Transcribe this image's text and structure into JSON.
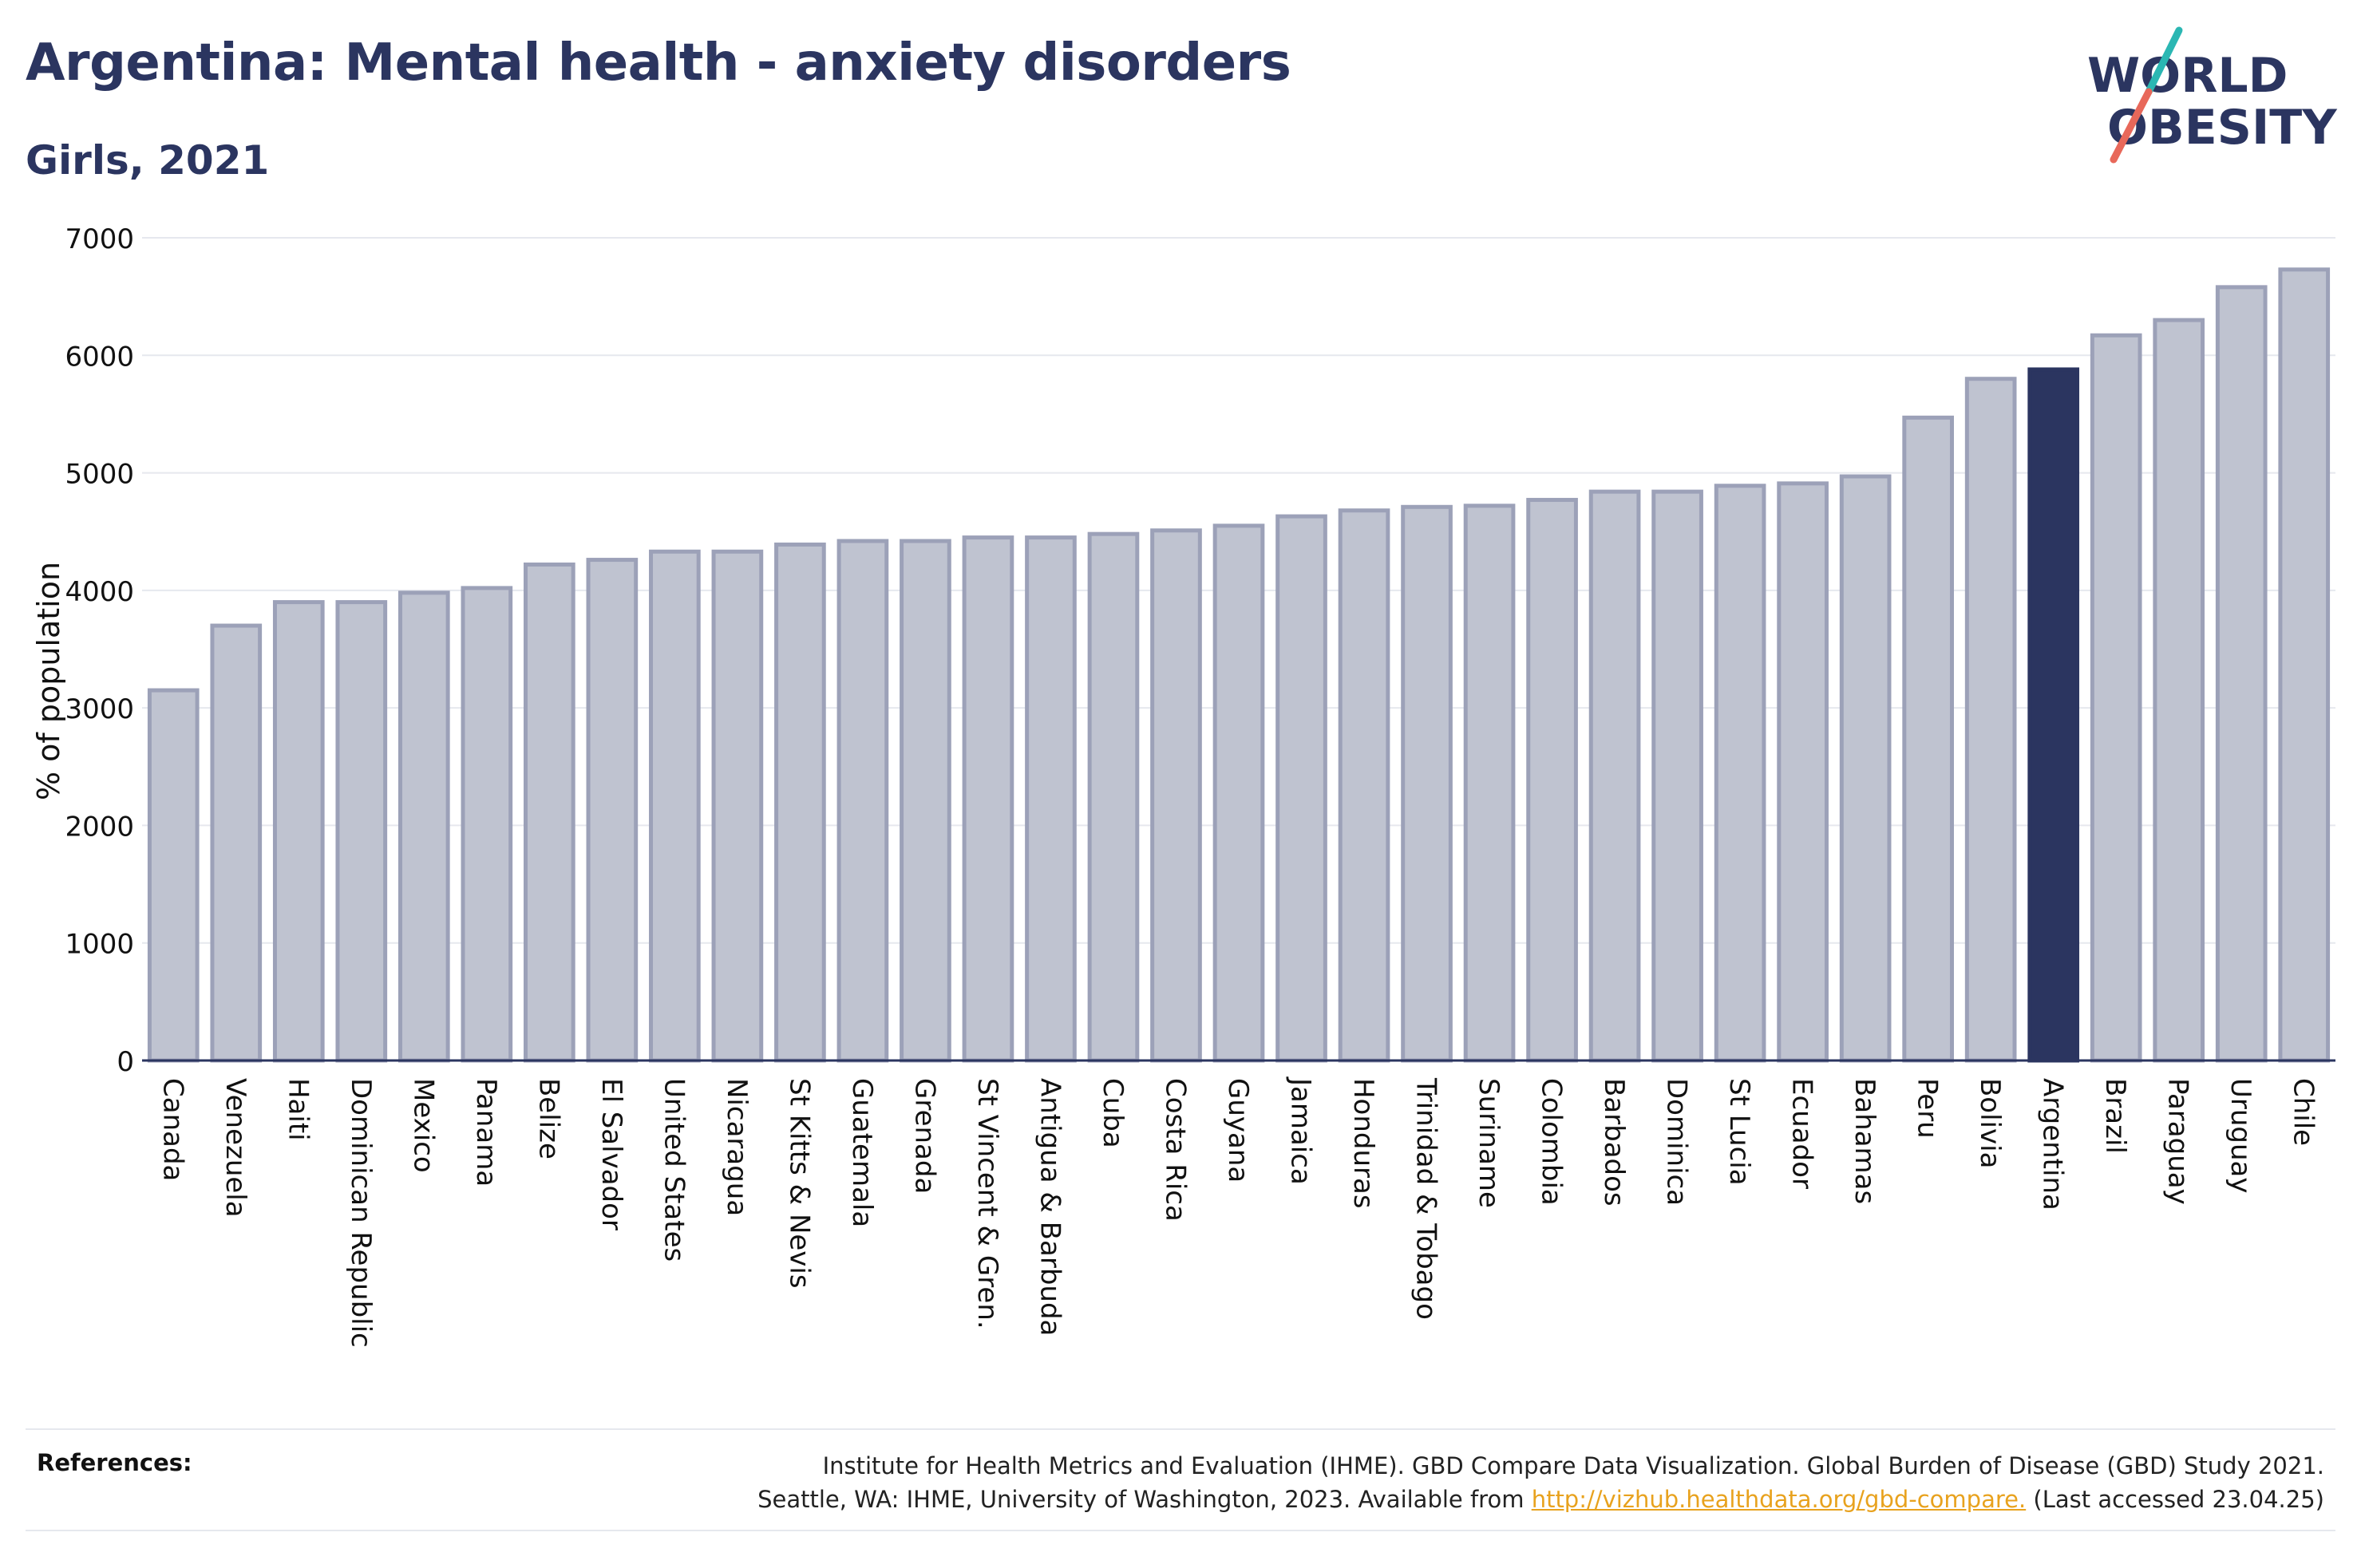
{
  "header": {
    "title": "Argentina: Mental health - anxiety disorders",
    "subtitle": "Girls, 2021"
  },
  "logo": {
    "line1": "WORLD",
    "line2": "OBESITY",
    "colors": {
      "text": "#2b3560",
      "teal": "#2bb7b3",
      "coral": "#e8685a"
    }
  },
  "references": {
    "label": "References:",
    "line1": "Institute for Health Metrics and Evaluation (IHME). GBD Compare Data Visualization. Global Burden of Disease (GBD) Study 2021.",
    "line2_prefix": "Seattle, WA: IHME, University of Washington, 2023. Available from ",
    "link": "http://vizhub.healthdata.org/gbd-compare.",
    "line2_suffix": " (Last accessed 23.04.25)"
  },
  "colors": {
    "bar": "#bfc3d0",
    "bar_stroke": "#9ca1b8",
    "highlight": "#2b3560",
    "grid": "#e6e8ee",
    "axis": "#2b3560"
  },
  "chart_data": {
    "type": "bar",
    "ylabel": "% of population",
    "xlabel": "",
    "ylim": [
      0,
      7000
    ],
    "yticks": [
      0,
      1000,
      2000,
      3000,
      4000,
      5000,
      6000,
      7000
    ],
    "grid": true,
    "highlight": "Argentina",
    "categories": [
      "Canada",
      "Venezuela",
      "Haiti",
      "Dominican Republic",
      "Mexico",
      "Panama",
      "Belize",
      "El Salvador",
      "United States",
      "Nicaragua",
      "St Kitts & Nevis",
      "Guatemala",
      "Grenada",
      "St Vincent & Gren.",
      "Antigua & Barbuda",
      "Cuba",
      "Costa Rica",
      "Guyana",
      "Jamaica",
      "Honduras",
      "Trinidad & Tobago",
      "Suriname",
      "Colombia",
      "Barbados",
      "Dominica",
      "St Lucia",
      "Ecuador",
      "Bahamas",
      "Peru",
      "Bolivia",
      "Argentina",
      "Brazil",
      "Paraguay",
      "Uruguay",
      "Chile"
    ],
    "values": [
      3150,
      3700,
      3900,
      3900,
      3980,
      4020,
      4220,
      4260,
      4330,
      4330,
      4390,
      4420,
      4420,
      4450,
      4450,
      4480,
      4510,
      4550,
      4630,
      4680,
      4710,
      4720,
      4770,
      4840,
      4840,
      4890,
      4910,
      4970,
      5470,
      5800,
      5880,
      6170,
      6300,
      6580,
      6730
    ]
  }
}
